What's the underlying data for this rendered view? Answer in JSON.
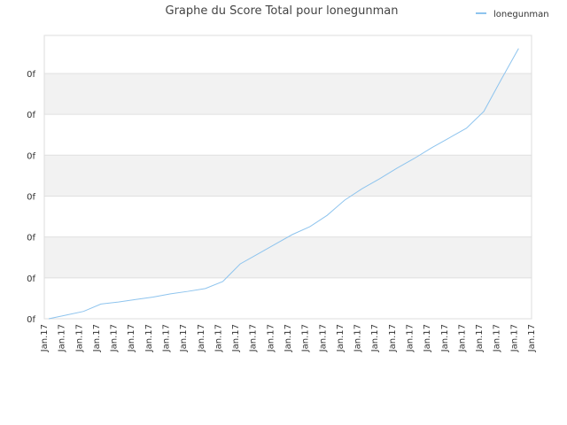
{
  "chart_data": {
    "type": "line",
    "title": "Graphe du Score Total pour lonegunman",
    "categories": [
      "Jan.17",
      "Jan.17",
      "Jan.17",
      "Jan.17",
      "Jan.17",
      "Jan.17",
      "Jan.17",
      "Jan.17",
      "Jan.17",
      "Jan.17",
      "Jan.17",
      "Jan.17",
      "Jan.17",
      "Jan.17",
      "Jan.17",
      "Jan.17",
      "Jan.17",
      "Jan.17",
      "Jan.17",
      "Jan.17",
      "Jan.17",
      "Jan.17",
      "Jan.17",
      "Jan.17",
      "Jan.17",
      "Jan.17",
      "Jan.17",
      "Jan.17",
      "Jan.17"
    ],
    "series": [
      {
        "name": "lonegunman",
        "color": "#8ec4ee",
        "values": [
          0,
          0.09,
          0.18,
          0.36,
          0.41,
          0.47,
          0.53,
          0.61,
          0.67,
          0.74,
          0.91,
          1.34,
          1.58,
          1.82,
          2.06,
          2.25,
          2.53,
          2.9,
          3.18,
          3.42,
          3.68,
          3.92,
          4.18,
          4.42,
          4.66,
          5.07,
          5.85,
          6.61,
          null
        ]
      }
    ],
    "ylim": [
      0,
      6.93
    ],
    "yticks": [
      {
        "value": 0,
        "label": "0f"
      },
      {
        "value": 1,
        "label": "0f"
      },
      {
        "value": 2,
        "label": "0f"
      },
      {
        "value": 3,
        "label": "0f"
      },
      {
        "value": 4,
        "label": "0f"
      },
      {
        "value": 5,
        "label": "0f"
      },
      {
        "value": 6,
        "label": "0f"
      }
    ],
    "grid": true,
    "legend": "top-right"
  }
}
